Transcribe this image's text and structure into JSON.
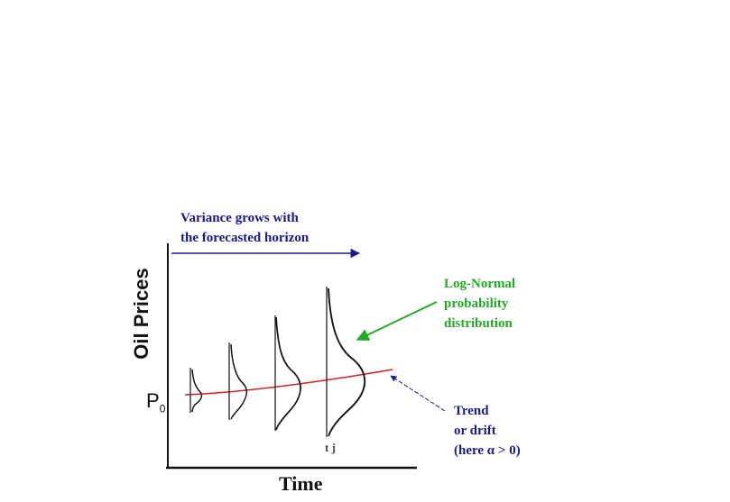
{
  "labels": {
    "variance_line1": "Variance grows with",
    "variance_line2": "the forecasted horizon",
    "lognormal_line1": "Log-Normal",
    "lognormal_line2": "probability",
    "lognormal_line3": "distribution",
    "trend_line1": "Trend",
    "trend_line2": "or drift",
    "trend_line3": "(here  α > 0)",
    "y_axis": "Oil Prices",
    "x_axis": "Time",
    "p0_main": "P",
    "p0_sub": "0",
    "tj": "t j"
  },
  "colors": {
    "axis": "#111111",
    "trend": "#cc2222",
    "variance_arrow": "#1a1a8c",
    "lognormal_arrow": "#22aa22",
    "trend_pointer": "#1a1a8c"
  }
}
